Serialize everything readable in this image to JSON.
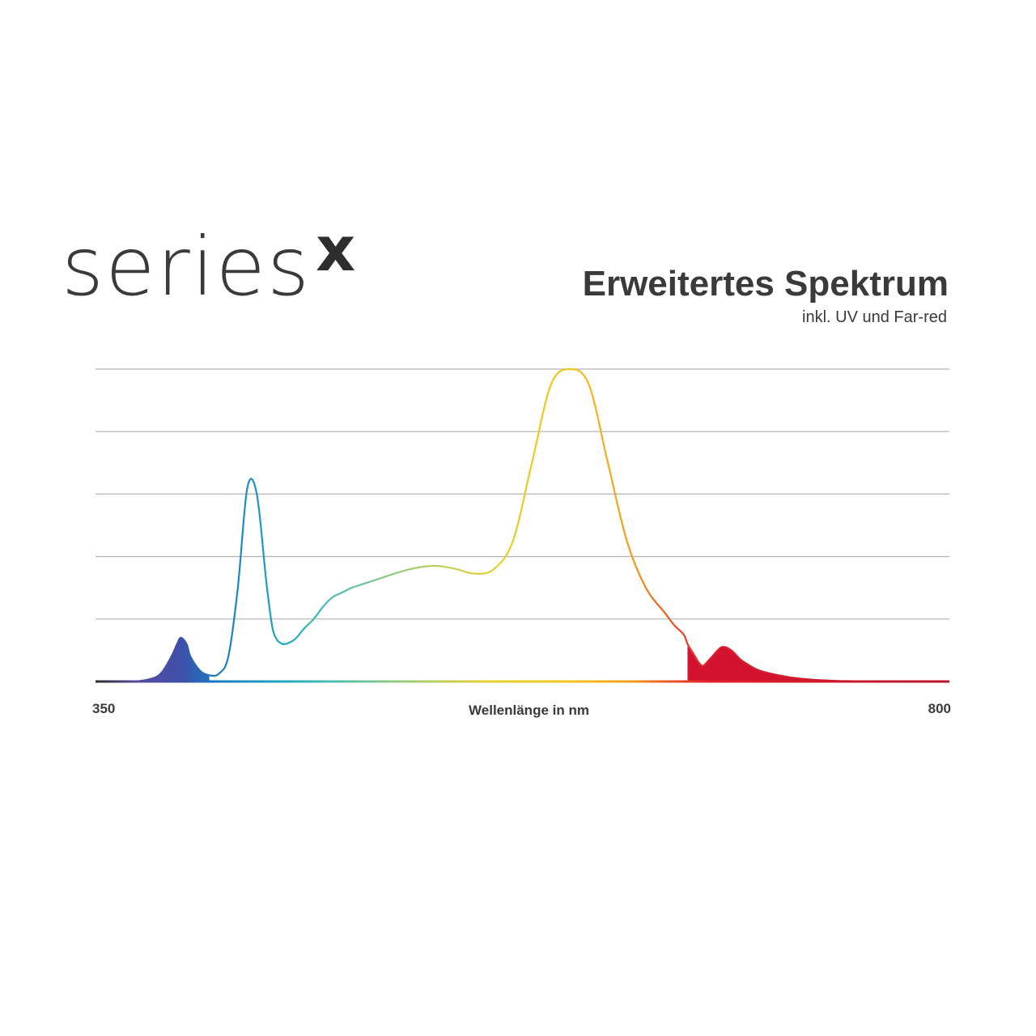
{
  "brand": {
    "word": "series",
    "mark": "x"
  },
  "chart_data": {
    "type": "line",
    "title": "Erweitertes Spektrum",
    "subtitle": "inkl. UV und Far-red",
    "xlabel": "Wellenlänge in nm",
    "ylabel": "",
    "xlim": [
      350,
      800
    ],
    "ylim": [
      0,
      1
    ],
    "grid": true,
    "x_ticks": [
      350,
      800
    ],
    "series": [
      {
        "x": [
          350,
          370,
          380,
          385,
          390,
          393,
          395,
          398,
          400,
          405,
          410,
          415,
          420,
          425,
          430,
          435,
          440,
          443,
          445,
          447,
          450,
          455,
          460,
          465,
          470,
          475,
          480,
          485,
          490,
          500,
          510,
          520,
          530,
          540,
          550,
          560,
          570,
          580,
          590,
          600,
          610,
          620,
          630,
          640,
          650,
          655,
          660,
          662,
          665,
          668,
          670,
          672,
          675,
          680,
          685,
          690,
          695,
          700,
          710,
          720,
          730,
          740,
          750,
          760,
          770,
          780,
          790,
          800
        ],
        "y": [
          0,
          0,
          0.01,
          0.03,
          0.08,
          0.12,
          0.14,
          0.12,
          0.08,
          0.035,
          0.02,
          0.025,
          0.08,
          0.3,
          0.62,
          0.6,
          0.32,
          0.18,
          0.14,
          0.125,
          0.12,
          0.135,
          0.17,
          0.2,
          0.24,
          0.27,
          0.285,
          0.3,
          0.31,
          0.33,
          0.35,
          0.365,
          0.37,
          0.36,
          0.345,
          0.36,
          0.45,
          0.7,
          0.95,
          1.0,
          0.95,
          0.7,
          0.45,
          0.3,
          0.22,
          0.18,
          0.15,
          0.12,
          0.09,
          0.06,
          0.05,
          0.06,
          0.08,
          0.11,
          0.1,
          0.07,
          0.05,
          0.035,
          0.02,
          0.01,
          0.005,
          0.002,
          0.001,
          0,
          0,
          0,
          0,
          0
        ]
      }
    ]
  }
}
